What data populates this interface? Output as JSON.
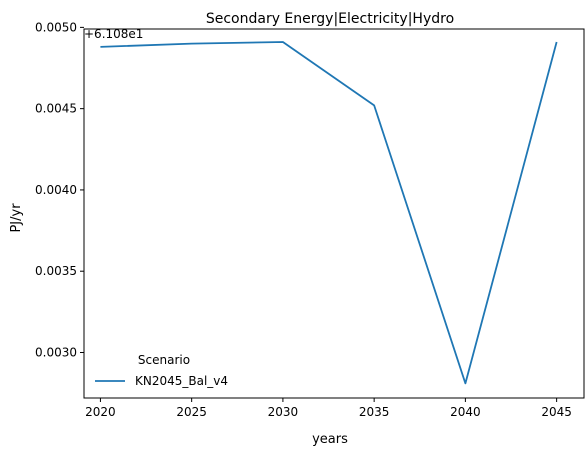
{
  "chart_data": {
    "type": "line",
    "title": "Secondary Energy|Electricity|Hydro",
    "xlabel": "years",
    "ylabel": "PJ/yr",
    "offset_label": "+6.108e1",
    "x": [
      2020,
      2025,
      2030,
      2035,
      2040,
      2045
    ],
    "series": [
      {
        "name": "KN2045_Bal_v4",
        "color": "#1f77b4",
        "values": [
          61.08488,
          61.0849,
          61.08491,
          61.08452,
          61.08281,
          61.08491
        ]
      }
    ],
    "xlim": [
      2019.1,
      2046.5
    ],
    "ylim": [
      61.08272,
      61.08499
    ],
    "xticks": [
      2020,
      2025,
      2030,
      2035,
      2040,
      2045
    ],
    "xtick_labels": [
      "2020",
      "2025",
      "2030",
      "2035",
      "2040",
      "2045"
    ],
    "yticks_offset": [
      0.003,
      0.0035,
      0.004,
      0.0045,
      0.005
    ],
    "ytick_labels": [
      "0.0030",
      "0.0035",
      "0.0040",
      "0.0045",
      "0.0050"
    ],
    "y_offset": 61.08,
    "legend": {
      "title": "Scenario",
      "placement": "lower-left",
      "entries": [
        "KN2045_Bal_v4"
      ]
    },
    "grid": false
  }
}
